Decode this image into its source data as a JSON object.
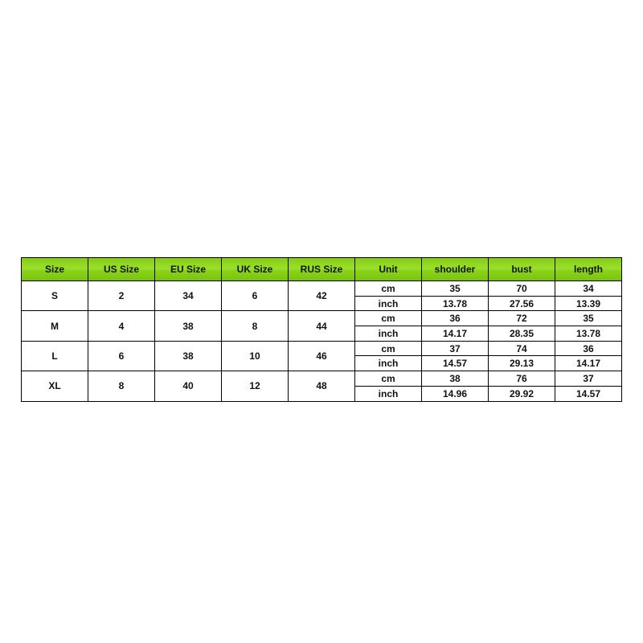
{
  "table": {
    "header": [
      "Size",
      "US Size",
      "EU Size",
      "UK Size",
      "RUS Size",
      "Unit",
      "shoulder",
      "bust",
      "length"
    ],
    "rows": [
      {
        "cells": [
          "S",
          "2",
          "34",
          "6",
          "42"
        ],
        "measures": [
          [
            "cm",
            "35",
            "70",
            "34"
          ],
          [
            "inch",
            "13.78",
            "27.56",
            "13.39"
          ]
        ]
      },
      {
        "cells": [
          "M",
          "4",
          "38",
          "8",
          "44"
        ],
        "measures": [
          [
            "cm",
            "36",
            "72",
            "35"
          ],
          [
            "inch",
            "14.17",
            "28.35",
            "13.78"
          ]
        ]
      },
      {
        "cells": [
          "L",
          "6",
          "38",
          "10",
          "46"
        ],
        "measures": [
          [
            "cm",
            "37",
            "74",
            "36"
          ],
          [
            "inch",
            "14.57",
            "29.13",
            "14.17"
          ]
        ]
      },
      {
        "cells": [
          "XL",
          "8",
          "40",
          "12",
          "48"
        ],
        "measures": [
          [
            "cm",
            "38",
            "76",
            "37"
          ],
          [
            "inch",
            "14.96",
            "29.92",
            "14.57"
          ]
        ]
      }
    ]
  }
}
